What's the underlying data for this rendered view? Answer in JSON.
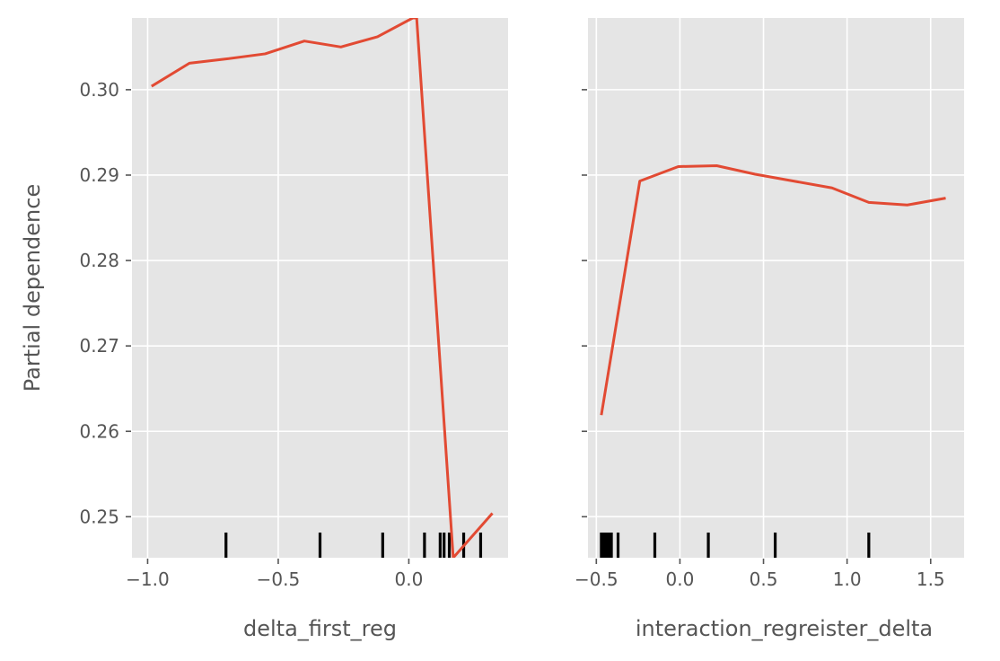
{
  "chart_data": [
    {
      "type": "line",
      "xlabel": "delta_first_reg",
      "ylabel": "Partial dependence",
      "xlim": [
        -1.06,
        0.38
      ],
      "ylim": [
        0.2452,
        0.3084
      ],
      "xticks": [
        -1.0,
        -0.5,
        0.0
      ],
      "xtick_labels": [
        "−1.0",
        "−0.5",
        "0.0"
      ],
      "yticks": [
        0.25,
        0.26,
        0.27,
        0.28,
        0.29,
        0.3
      ],
      "ytick_labels": [
        "0.25",
        "0.26",
        "0.27",
        "0.28",
        "0.29",
        "0.30"
      ],
      "grid": true,
      "series": [
        {
          "x": [
            -0.985,
            -0.84,
            -0.7,
            -0.55,
            -0.4,
            -0.26,
            -0.12,
            0.015,
            0.03,
            0.17,
            0.32
          ],
          "y": [
            0.3004,
            0.3031,
            0.3036,
            0.3042,
            0.3057,
            0.305,
            0.3062,
            0.3084,
            0.3084,
            0.2452,
            0.2504
          ]
        }
      ],
      "rug": [
        -0.7,
        -0.34,
        -0.1,
        0.06,
        0.12,
        0.135,
        0.155,
        0.21,
        0.275
      ]
    },
    {
      "type": "line",
      "xlabel": "interaction_regreister_delta",
      "xlim": [
        -0.55,
        1.7
      ],
      "ylim": [
        0.2452,
        0.3084
      ],
      "xticks": [
        -0.5,
        0.0,
        0.5,
        1.0,
        1.5
      ],
      "xtick_labels": [
        "−0.5",
        "0.0",
        "0.5",
        "1.0",
        "1.5"
      ],
      "yticks": [
        0.25,
        0.26,
        0.27,
        0.28,
        0.29,
        0.3
      ],
      "grid": true,
      "series": [
        {
          "x": [
            -0.47,
            -0.24,
            -0.01,
            0.22,
            0.45,
            0.68,
            0.91,
            1.13,
            1.36,
            1.59
          ],
          "y": [
            0.2619,
            0.2893,
            0.291,
            0.2911,
            0.2901,
            0.2893,
            0.2885,
            0.2868,
            0.2865,
            0.2873
          ]
        }
      ],
      "rug": [
        -0.47,
        -0.455,
        -0.44,
        -0.425,
        -0.41,
        -0.37,
        -0.15,
        0.17,
        0.57,
        1.13
      ]
    }
  ],
  "colors": {
    "line": "#e24a33",
    "panel_bg": "#e5e5e5",
    "grid": "#ffffff",
    "text": "#555555",
    "rug": "#000000"
  }
}
